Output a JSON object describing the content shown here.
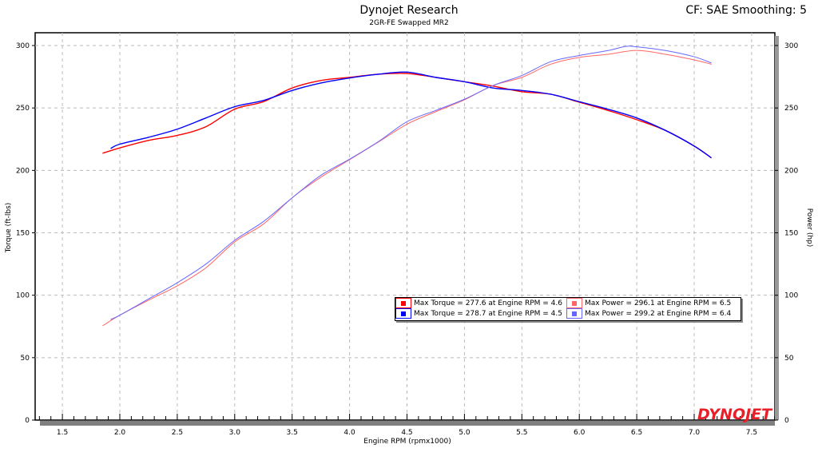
{
  "header": {
    "title": "Dynojet Research",
    "subtitle": "2GR-FE Swapped MR2",
    "settings": "CF: SAE Smoothing: 5"
  },
  "logo_text": "DYNOJET",
  "chart_data": {
    "type": "line",
    "xlabel": "Engine RPM (rpmx1000)",
    "ylabel_left": "Torque (ft-lbs)",
    "ylabel_right": "Power (hp)",
    "xlim": [
      1.26,
      7.7
    ],
    "ylim": [
      0,
      310
    ],
    "xticks": [
      "1.5",
      "2.0",
      "2.5",
      "3.0",
      "3.5",
      "4.0",
      "4.5",
      "5.0",
      "5.5",
      "6.0",
      "6.5",
      "7.0",
      "7.5"
    ],
    "yticks": [
      "0",
      "50",
      "100",
      "150",
      "200",
      "250",
      "300"
    ],
    "grid": true,
    "legend_position": "center-right",
    "series": [
      {
        "name": "Max Torque = 277.6 at Engine RPM = 4.6",
        "axis": "left",
        "color": "#ff0000",
        "x": [
          1.85,
          2.0,
          2.25,
          2.5,
          2.75,
          3.0,
          3.25,
          3.5,
          3.75,
          4.0,
          4.25,
          4.5,
          4.75,
          5.0,
          5.25,
          5.5,
          5.75,
          6.0,
          6.25,
          6.5,
          6.75,
          7.0,
          7.15
        ],
        "y": [
          213.7,
          218,
          224,
          228,
          235,
          249,
          255,
          266,
          272,
          274.5,
          277,
          277.6,
          274.5,
          271,
          267.5,
          263,
          261,
          254.6,
          248,
          240.6,
          232,
          219.5,
          210
        ]
      },
      {
        "name": "Max Torque = 278.7 at Engine RPM = 4.5",
        "axis": "left",
        "color": "#0000ff",
        "x": [
          1.92,
          2.0,
          2.25,
          2.5,
          2.75,
          3.0,
          3.25,
          3.5,
          3.75,
          4.0,
          4.25,
          4.5,
          4.75,
          5.0,
          5.25,
          5.5,
          5.75,
          6.0,
          6.25,
          6.5,
          6.75,
          7.0,
          7.15
        ],
        "y": [
          217.5,
          221,
          226.5,
          233,
          242,
          251,
          256,
          264,
          270,
          274,
          277,
          278.7,
          274.5,
          271,
          266,
          264,
          261,
          255,
          249,
          242,
          232,
          219.5,
          210
        ]
      },
      {
        "name": "Max Power = 296.1 at Engine RPM = 6.5",
        "axis": "right",
        "color": "#ff6666",
        "x": [
          1.85,
          2.0,
          2.25,
          2.5,
          2.75,
          3.0,
          3.25,
          3.5,
          3.75,
          4.0,
          4.25,
          4.5,
          4.75,
          5.0,
          5.25,
          5.5,
          5.75,
          6.0,
          6.25,
          6.5,
          6.75,
          7.0,
          7.15
        ],
        "y": [
          75.5,
          84,
          96,
          107.5,
          122,
          142.7,
          157,
          178,
          194.5,
          208.6,
          222.6,
          237,
          247,
          256.5,
          268,
          274.5,
          285,
          290.5,
          293,
          296.1,
          293,
          288.5,
          285
        ]
      },
      {
        "name": "Max Power = 299.2 at Engine RPM = 6.4",
        "axis": "right",
        "color": "#6666ff",
        "x": [
          1.92,
          2.0,
          2.25,
          2.5,
          2.75,
          3.0,
          3.25,
          3.5,
          3.75,
          4.0,
          4.25,
          4.5,
          4.75,
          5.0,
          5.25,
          5.5,
          5.75,
          6.0,
          6.25,
          6.4,
          6.5,
          6.75,
          7.0,
          7.15
        ],
        "y": [
          80.6,
          84,
          97,
          110,
          125,
          144,
          159,
          178,
          196,
          209,
          223,
          239,
          248,
          257,
          268,
          276,
          287,
          292,
          296,
          299.2,
          299,
          296,
          291,
          286
        ]
      }
    ]
  }
}
